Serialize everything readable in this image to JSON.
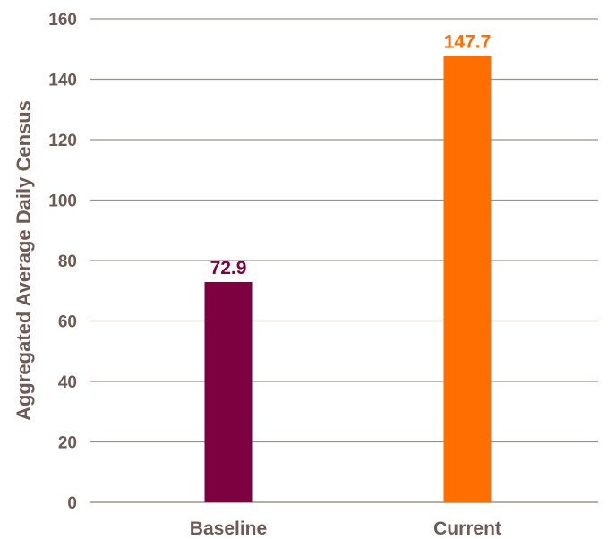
{
  "chart_data": {
    "type": "bar",
    "categories": [
      "Baseline",
      "Current"
    ],
    "values": [
      72.9,
      147.7
    ],
    "value_labels": [
      "72.9",
      "147.7"
    ],
    "bar_colors": [
      "#7d0040",
      "#ff6e00"
    ],
    "ylabel": "Aggregated Average Daily Census",
    "xlabel": "",
    "ylim": [
      0,
      160
    ],
    "yticks": [
      0,
      20,
      40,
      60,
      80,
      100,
      120,
      140,
      160
    ],
    "grid": true,
    "legend": "none"
  }
}
